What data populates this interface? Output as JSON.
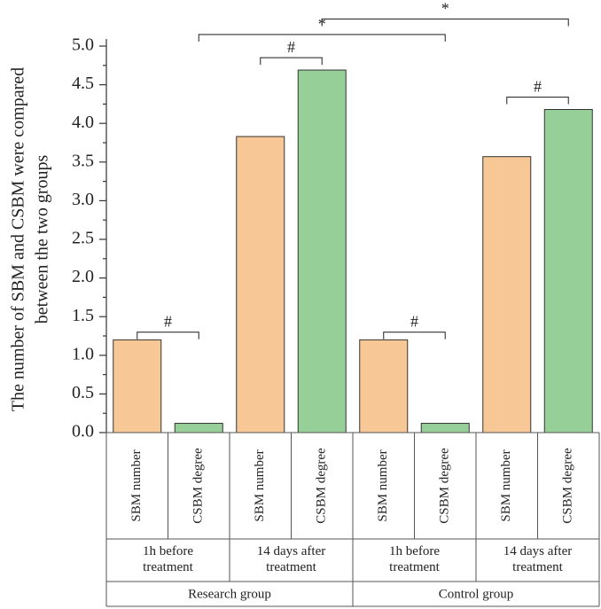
{
  "colors": {
    "sbm_number": "#F7C896",
    "csbm_degree": "#97CF98"
  },
  "chart_data": {
    "type": "bar",
    "title": "",
    "ylabel_lines": [
      "The number of SBM and CSBM were compared",
      "between the two groups"
    ],
    "ylim": [
      0,
      5.0
    ],
    "yticks": [
      0.0,
      0.5,
      1.0,
      1.5,
      2.0,
      2.5,
      3.0,
      3.5,
      4.0,
      4.5,
      5.0
    ],
    "ytick_labels": [
      "0.0",
      "0.5",
      "1.0",
      "1.5",
      "2.0",
      "2.5",
      "3.0",
      "3.5",
      "4.0",
      "4.5",
      "5.0"
    ],
    "categories": [
      "SBM number",
      "CSBM degree",
      "SBM number",
      "CSBM degree",
      "SBM number",
      "CSBM degree",
      "SBM number",
      "CSBM degree"
    ],
    "values": [
      1.2,
      0.12,
      3.83,
      4.69,
      1.2,
      0.12,
      3.57,
      4.18
    ],
    "series_of_bar": [
      "sbm_number",
      "csbm_degree",
      "sbm_number",
      "csbm_degree",
      "sbm_number",
      "csbm_degree",
      "sbm_number",
      "csbm_degree"
    ],
    "time_labels": [
      {
        "lines": [
          "1h before",
          "treatment"
        ],
        "from": 0,
        "to": 1
      },
      {
        "lines": [
          "14 days after",
          "treatment"
        ],
        "from": 2,
        "to": 3
      },
      {
        "lines": [
          "1h before",
          "treatment"
        ],
        "from": 4,
        "to": 5
      },
      {
        "lines": [
          "14 days after",
          "treatment"
        ],
        "from": 6,
        "to": 7
      }
    ],
    "groups": [
      {
        "label": "Research group",
        "from": 0,
        "to": 3
      },
      {
        "label": "Control group",
        "from": 4,
        "to": 7
      }
    ],
    "significance": [
      {
        "from": 0,
        "to": 1,
        "label": "#",
        "y": 1.3
      },
      {
        "from": 2,
        "to": 3,
        "label": "#",
        "y": 4.85
      },
      {
        "from": 4,
        "to": 5,
        "label": "#",
        "y": 1.3
      },
      {
        "from": 6,
        "to": 7,
        "label": "#",
        "y": 4.34
      },
      {
        "from": 1,
        "to": 5,
        "label": "*",
        "y": 5.15
      },
      {
        "from": 3,
        "to": 7,
        "label": "*",
        "y": 5.35
      }
    ]
  }
}
